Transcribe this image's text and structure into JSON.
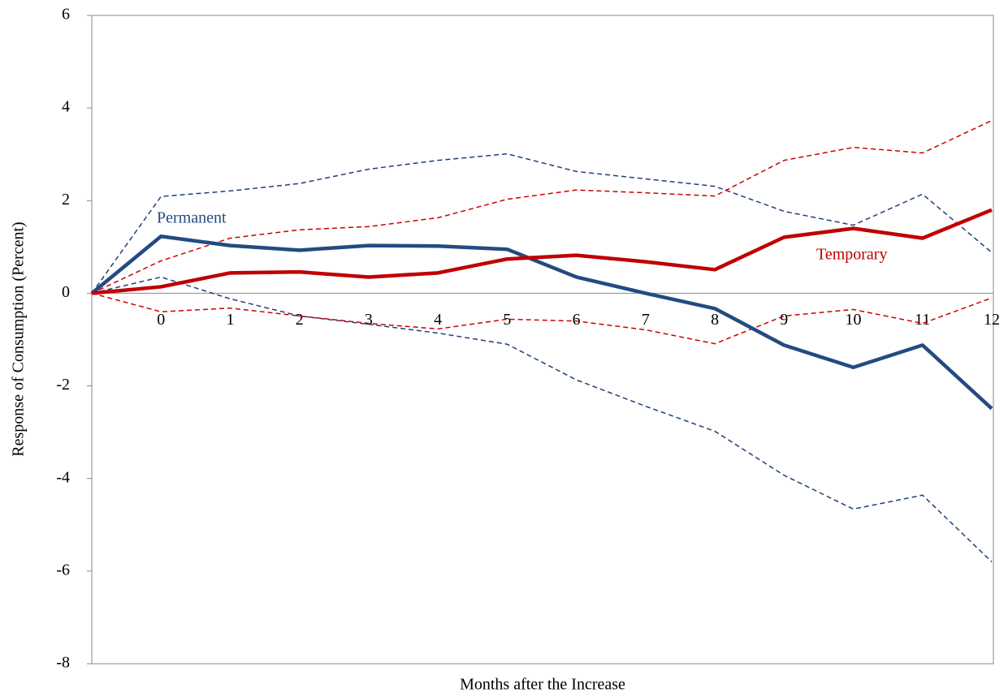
{
  "chart_data": {
    "type": "line",
    "y_label": "Response of  Consumption (Percent)",
    "x_label": "Months after the Increase",
    "categories": [
      null,
      "0",
      "1",
      "2",
      "3",
      "4",
      "5",
      "6",
      "7",
      "8",
      "9",
      "10",
      "11",
      "12"
    ],
    "series": [
      {
        "color": "#1f3f78",
        "dashed": true,
        "values": [
          0,
          2.09,
          2.21,
          2.37,
          2.68,
          2.87,
          3.01,
          2.63,
          2.47,
          2.31,
          1.77,
          1.47,
          2.14,
          0.88
        ]
      },
      {
        "color": "#1f3f78",
        "dashed": true,
        "values": [
          0,
          0.35,
          -0.12,
          -0.49,
          -0.67,
          -0.86,
          -1.1,
          -1.87,
          -2.44,
          -2.98,
          -3.93,
          -4.66,
          -4.36,
          -5.8
        ]
      },
      {
        "color": "#cc0000",
        "dashed": true,
        "values": [
          0,
          0.7,
          1.19,
          1.37,
          1.44,
          1.63,
          2.03,
          2.23,
          2.17,
          2.1,
          2.87,
          3.15,
          3.03,
          3.73
        ]
      },
      {
        "color": "#cc0000",
        "dashed": true,
        "values": [
          0,
          -0.4,
          -0.32,
          -0.49,
          -0.65,
          -0.77,
          -0.56,
          -0.6,
          -0.79,
          -1.09,
          -0.49,
          -0.35,
          -0.65,
          -0.1
        ]
      },
      {
        "name": "Permanent",
        "color": "#234b80",
        "dashed": false,
        "values": [
          0,
          1.23,
          1.03,
          0.93,
          1.03,
          1.02,
          0.95,
          0.35,
          0.0,
          -0.33,
          -1.12,
          -1.6,
          -1.12,
          -2.49
        ]
      },
      {
        "name": "Temporary",
        "color": "#c00000",
        "dashed": false,
        "values": [
          0,
          0.14,
          0.44,
          0.46,
          0.35,
          0.44,
          0.74,
          0.82,
          0.68,
          0.51,
          1.21,
          1.4,
          1.19,
          1.8
        ]
      }
    ],
    "ylim": [
      -8,
      6
    ],
    "yticks": [
      -8,
      -6,
      -4,
      -2,
      0,
      2,
      4,
      6
    ],
    "grid": false
  }
}
